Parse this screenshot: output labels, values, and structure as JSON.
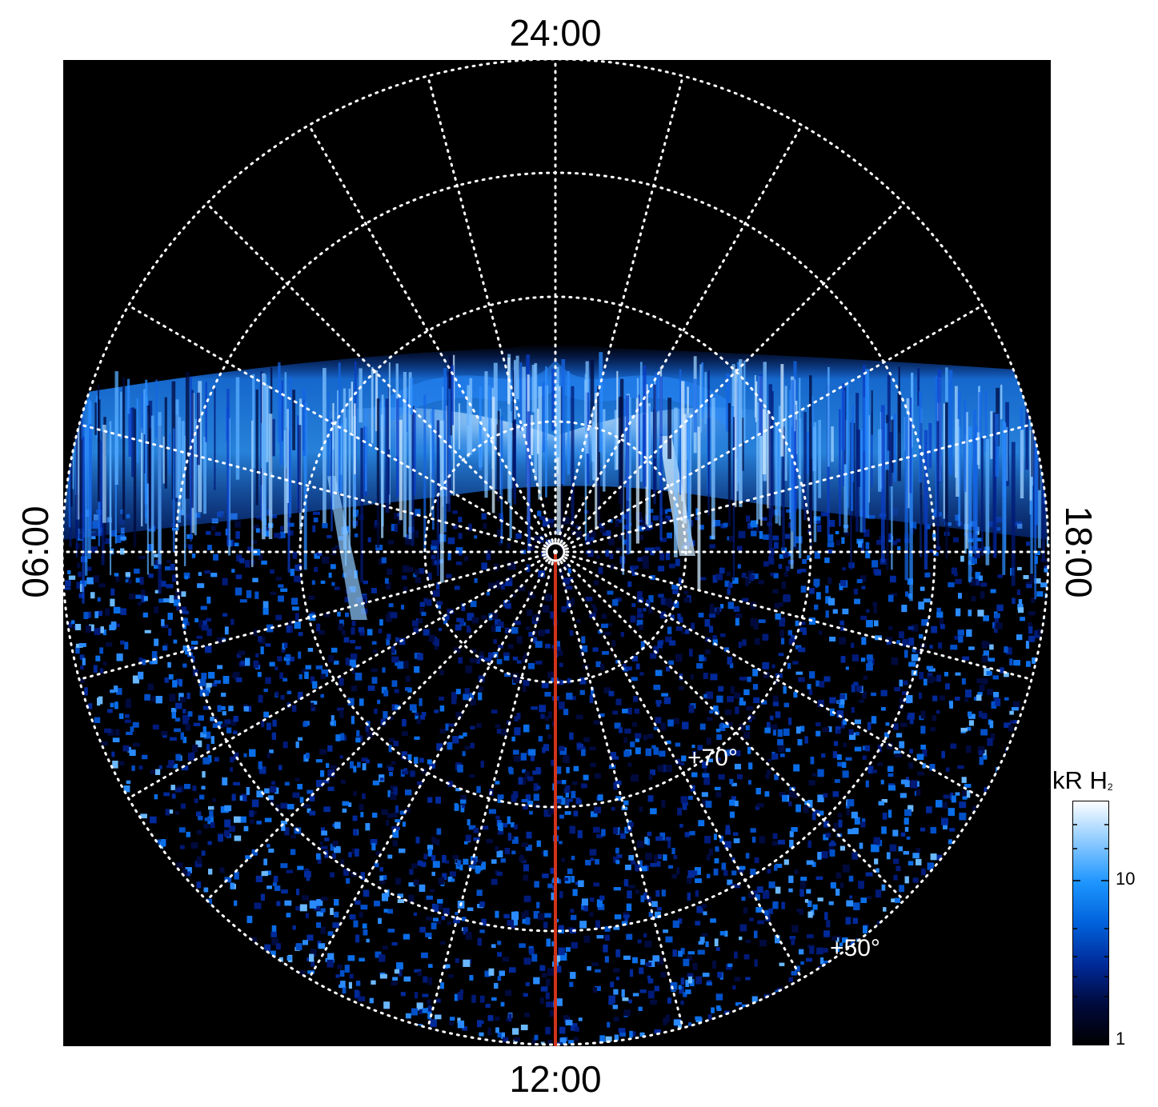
{
  "labels": {
    "top": "24:00",
    "bottom": "12:00",
    "left": "06:00",
    "right": "18:00"
  },
  "latitude_labels": [
    "+70°",
    "+50°"
  ],
  "colorbar": {
    "title_main": "kR H",
    "title_sub": "2",
    "scale": "log",
    "ticks": [
      "10",
      "1"
    ],
    "colors": [
      "#000000",
      "#000a3c",
      "#002a9a",
      "#0062dc",
      "#1e96ff",
      "#8ccaff",
      "#ffffff"
    ]
  },
  "overlay": {
    "grid_color": "#ffffff",
    "meridian_color": "#d0341a"
  }
}
